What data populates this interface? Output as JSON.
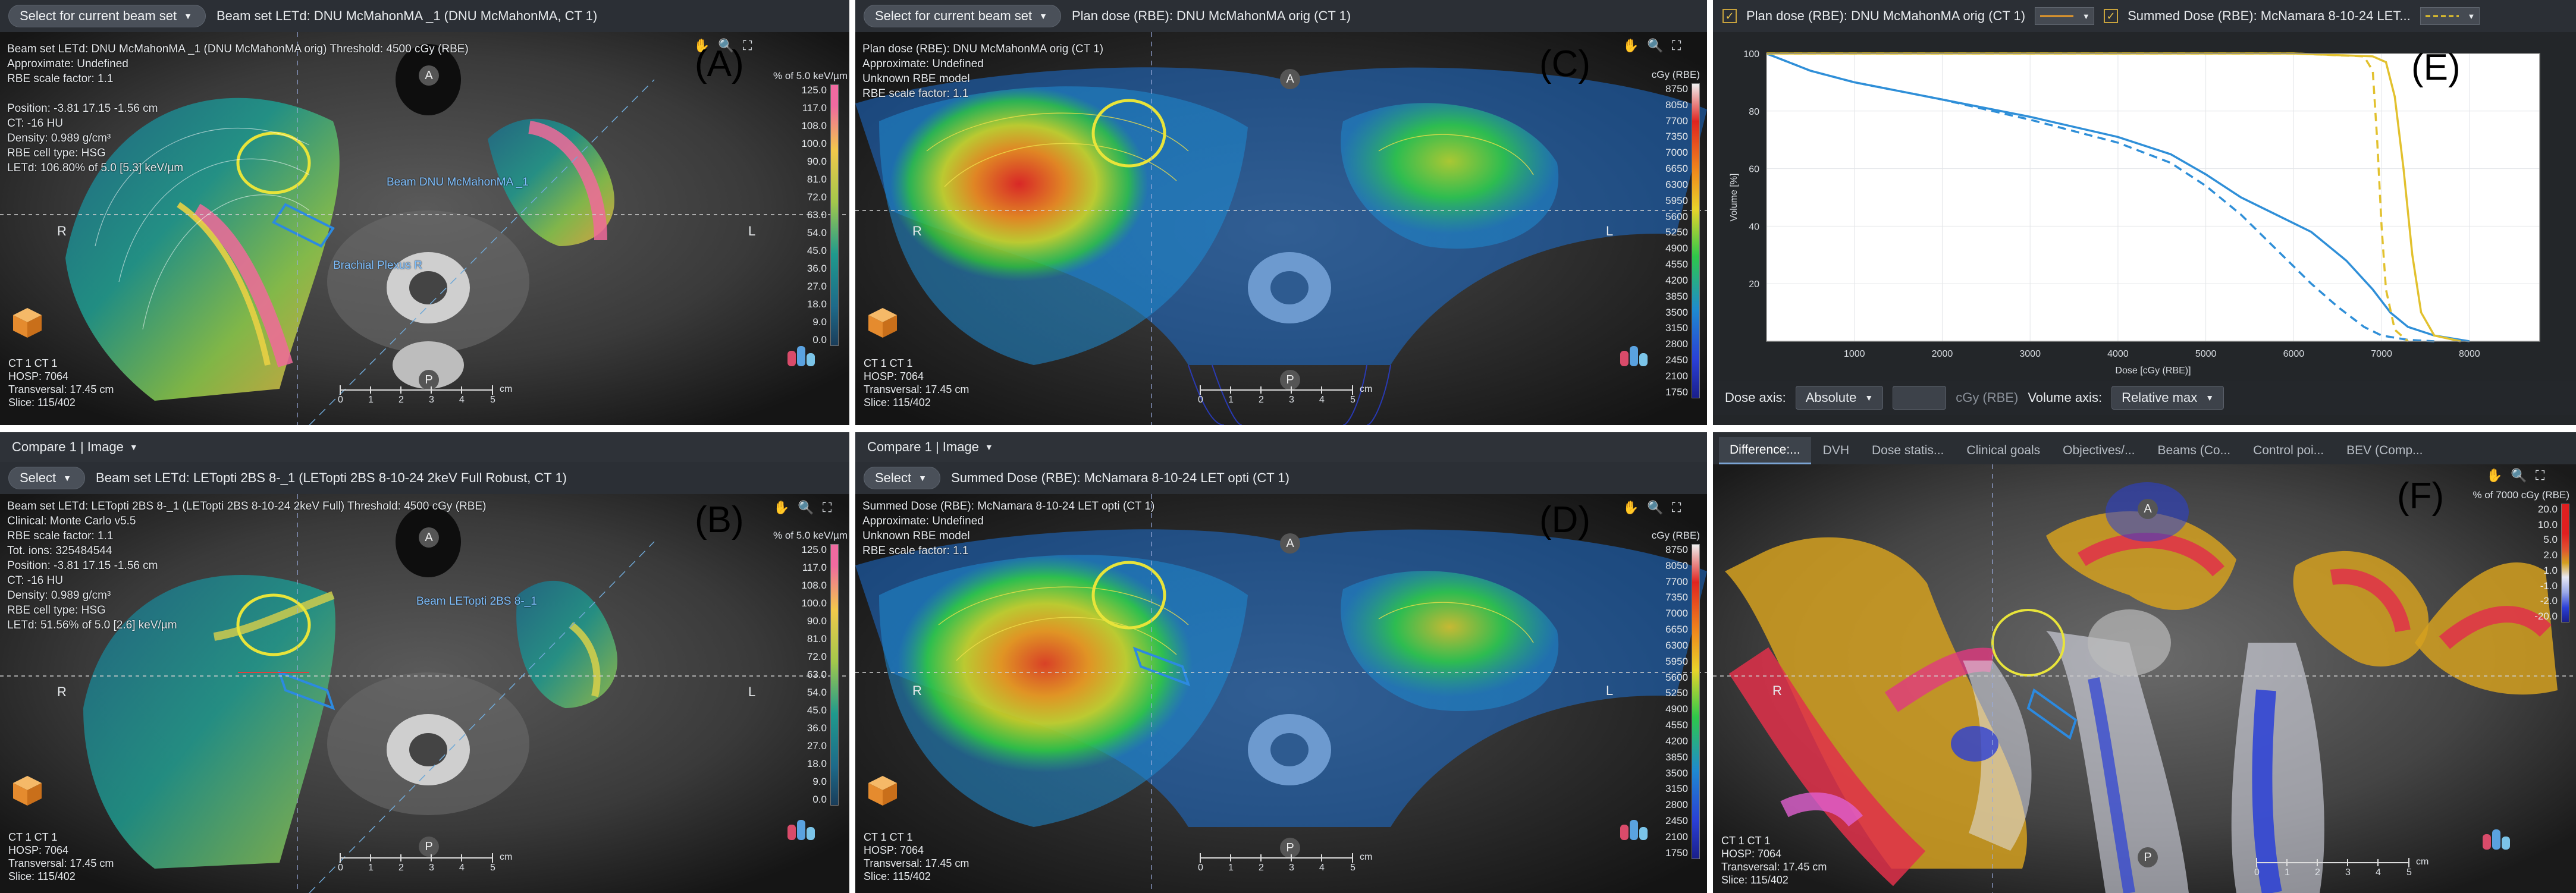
{
  "panels": {
    "A": {
      "letter": "(A)",
      "dropdown": "Select for current beam set",
      "title": "Beam set LETd: DNU McMahonMA _1 (DNU McMahonMA, CT 1)",
      "info": "Beam set LETd: DNU McMahonMA _1 (DNU McMahonMA orig) Threshold: 4500 cGy (RBE)\nApproximate: Undefined\nRBE scale factor: 1.1\n\nPosition: -3.81 17.15 -1.56 cm\nCT: -16 HU\nDensity: 0.989 g/cm³\nRBE cell type: HSG\nLETd: 106.80% of 5.0 [5.3] keV/µm",
      "legend_title": "% of 5.0 keV/µm",
      "legend_values": [
        "125.0",
        "117.0",
        "108.0",
        "100.0",
        "90.0",
        "81.0",
        "72.0",
        "63.0",
        "54.0",
        "45.0",
        "36.0",
        "27.0",
        "18.0",
        "9.0",
        "0.0"
      ],
      "roi_labels": [
        "Brachial Plexus R",
        "Beam DNU McMahonMA _1"
      ],
      "bottom_info": "CT 1 CT 1\nHOSP: 7064\nTransversal: 17.45 cm\nSlice: 115/402"
    },
    "B": {
      "letter": "(B)",
      "compare_label": "Compare 1 | Image",
      "dropdown": "Select",
      "title": "Beam set LETd: LETopti 2BS 8-_1 (LETopti 2BS 8-10-24 2keV Full Robust, CT 1)",
      "info": "Beam set LETd: LETopti 2BS 8-_1 (LETopti 2BS 8-10-24 2keV Full) Threshold: 4500 cGy (RBE)\nClinical: Monte Carlo v5.5\nRBE scale factor: 1.1\nTot. ions: 325484544\nPosition: -3.81 17.15 -1.56 cm\nCT: -16 HU\nDensity: 0.989 g/cm³\nRBE cell type: HSG\nLETd: 51.56% of 5.0 [2.6] keV/µm",
      "legend_title": "% of 5.0 keV/µm",
      "legend_values": [
        "125.0",
        "117.0",
        "108.0",
        "100.0",
        "90.0",
        "81.0",
        "72.0",
        "63.0",
        "54.0",
        "45.0",
        "36.0",
        "27.0",
        "18.0",
        "9.0",
        "0.0"
      ],
      "roi_labels": [
        "Beam LETopti 2BS 8-_1"
      ],
      "bottom_info": "CT 1 CT 1\nHOSP: 7064\nTransversal: 17.45 cm\nSlice: 115/402"
    },
    "C": {
      "letter": "(C)",
      "dropdown": "Select for current beam set",
      "title": "Plan dose (RBE): DNU McMahonMA orig (CT 1)",
      "info": "Plan dose (RBE): DNU McMahonMA orig (CT 1)\nApproximate: Undefined\nUnknown RBE model\nRBE scale factor: 1.1",
      "legend_title": "cGy (RBE)",
      "legend_values": [
        "8750",
        "8050",
        "7700",
        "7350",
        "7000",
        "6650",
        "6300",
        "5950",
        "5600",
        "5250",
        "4900",
        "4550",
        "4200",
        "3850",
        "3500",
        "3150",
        "2800",
        "2450",
        "2100",
        "1750"
      ],
      "bottom_info": "CT 1 CT 1\nHOSP: 7064\nTransversal: 17.45 cm\nSlice: 115/402"
    },
    "D": {
      "letter": "(D)",
      "compare_label": "Compare 1 | Image",
      "dropdown": "Select",
      "title": "Summed Dose (RBE): McNamara 8-10-24 LET opti (CT 1)",
      "info": "Summed Dose (RBE): McNamara 8-10-24 LET opti (CT 1)\nApproximate: Undefined\nUnknown RBE model\nRBE scale factor: 1.1",
      "legend_title": "cGy (RBE)",
      "legend_values": [
        "8750",
        "8050",
        "7700",
        "7350",
        "7000",
        "6650",
        "6300",
        "5950",
        "5600",
        "5250",
        "4900",
        "4550",
        "4200",
        "3850",
        "3500",
        "3150",
        "2800",
        "2450",
        "2100",
        "1750"
      ],
      "bottom_info": "CT 1 CT 1\nHOSP: 7064\nTransversal: 17.45 cm\nSlice: 115/402"
    },
    "E": {
      "letter": "(E)",
      "legend_1": "Plan dose (RBE): DNU McMahonMA orig (CT 1)",
      "legend_2": "Summed Dose (RBE): McNamara 8-10-24 LET...",
      "dose_axis_label": "Dose axis:",
      "dose_axis_value": "Absolute",
      "dose_unit": "cGy (RBE)",
      "volume_axis_label": "Volume axis:",
      "volume_axis_value": "Relative max"
    },
    "F": {
      "letter": "(F)",
      "tabs": [
        "Difference:...",
        "DVH",
        "Dose statis...",
        "Clinical goals",
        "Objectives/...",
        "Beams (Co...",
        "Control poi...",
        "BEV (Comp..."
      ],
      "legend_title": "% of 7000 cGy (RBE)",
      "legend_values": [
        "20.0",
        "10.0",
        "5.0",
        "2.0",
        "1.0",
        "-1.0",
        "-2.0",
        "-20.0"
      ],
      "bottom_info": "CT 1 CT 1\nHOSP: 7064\nTransversal: 17.45 cm\nSlice: 115/402"
    }
  },
  "orientation": {
    "anterior": "A",
    "posterior": "P",
    "right": "R",
    "left": "L"
  },
  "ruler_labels": [
    "0",
    "1",
    "2",
    "3",
    "4",
    "5"
  ],
  "ruler_unit": "cm",
  "chart_data": {
    "type": "line",
    "xlabel": "Dose [cGy (RBE)]",
    "ylabel": "Volume [%]",
    "xlim": [
      0,
      8800
    ],
    "ylim": [
      0,
      100
    ],
    "x_ticks": [
      1000,
      2000,
      3000,
      4000,
      5000,
      6000,
      7000,
      8000
    ],
    "y_ticks": [
      20,
      40,
      60,
      80,
      100
    ],
    "grid": true,
    "series": [
      {
        "color": "#2f8fd8",
        "style": "solid",
        "x": [
          0,
          500,
          1000,
          2000,
          3000,
          4000,
          4600,
          5000,
          5400,
          5800,
          6200,
          6600,
          6900,
          7100,
          7300,
          7600,
          8000
        ],
        "y": [
          100,
          94,
          90,
          84,
          78,
          71,
          65,
          58,
          50,
          44,
          38,
          28,
          18,
          10,
          5,
          2,
          0
        ]
      },
      {
        "color": "#2f8fd8",
        "style": "dashed",
        "x": [
          0,
          500,
          1000,
          2000,
          3000,
          4000,
          4600,
          5000,
          5400,
          5800,
          6200,
          6500,
          6800,
          7000,
          7300,
          7600
        ],
        "y": [
          100,
          94,
          90,
          84,
          77,
          69,
          62,
          54,
          44,
          32,
          20,
          12,
          5,
          2,
          0.5,
          0
        ]
      },
      {
        "color": "#e2c12e",
        "style": "solid",
        "x": [
          0,
          6000,
          6900,
          7050,
          7150,
          7250,
          7350,
          7450,
          7600,
          7900
        ],
        "y": [
          100,
          100,
          99,
          97,
          85,
          60,
          30,
          10,
          2,
          0
        ]
      },
      {
        "color": "#e2c12e",
        "style": "dashed",
        "x": [
          0,
          6000,
          6800,
          6900,
          6950,
          7000,
          7050,
          7150,
          7300
        ],
        "y": [
          100,
          100,
          99,
          94,
          70,
          40,
          18,
          4,
          0
        ]
      }
    ]
  }
}
